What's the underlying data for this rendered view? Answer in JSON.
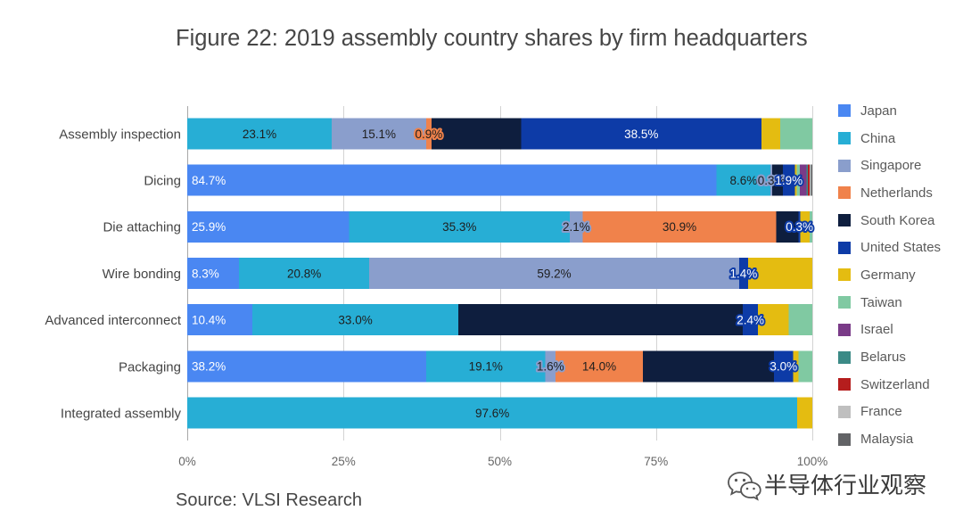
{
  "chart_data": {
    "type": "bar",
    "orientation": "horizontal",
    "stacked": true,
    "title": "Figure 22: 2019 assembly country shares by firm headquarters",
    "xlabel": "",
    "ylabel": "",
    "xlim": [
      0,
      100
    ],
    "x_ticks": [
      0,
      25,
      50,
      75,
      100
    ],
    "x_tick_labels": [
      "0%",
      "25%",
      "50%",
      "75%",
      "100%"
    ],
    "grid": true,
    "legend_position": "right",
    "categories": [
      "Assembly inspection",
      "Dicing",
      "Die attaching",
      "Wire bonding",
      "Advanced interconnect",
      "Packaging",
      "Integrated assembly"
    ],
    "series": [
      {
        "name": "Japan",
        "color": "#4a87f2",
        "label_color": "#ffffff",
        "values": [
          0,
          84.7,
          25.9,
          8.3,
          10.4,
          38.2,
          0
        ],
        "labels": [
          null,
          "84.7%",
          "25.9%",
          "8.3%",
          "10.4%",
          "38.2%",
          null
        ]
      },
      {
        "name": "China",
        "color": "#27aed5",
        "label_color": "#1e1e1e",
        "values": [
          23.1,
          8.6,
          35.3,
          20.8,
          33.0,
          19.1,
          97.6
        ],
        "labels": [
          "23.1%",
          "8.6%",
          "35.3%",
          "20.8%",
          "33.0%",
          "19.1%",
          "97.6%"
        ]
      },
      {
        "name": "Singapore",
        "color": "#8a9ecc",
        "label_color": "#1e1e1e",
        "values": [
          15.1,
          0.3,
          2.1,
          59.2,
          0,
          1.6,
          0
        ],
        "labels": [
          "15.1%",
          "0.3%",
          "2.1%",
          "59.2%",
          null,
          "1.6%",
          null
        ]
      },
      {
        "name": "Netherlands",
        "color": "#f0824b",
        "label_color": "#1e1e1e",
        "values": [
          0.9,
          0,
          30.9,
          0,
          0,
          14.0,
          0
        ],
        "labels": [
          "0.9%",
          null,
          "30.9%",
          null,
          null,
          "14.0%",
          null
        ]
      },
      {
        "name": "South Korea",
        "color": "#0e1e3e",
        "values": [
          14.3,
          1.7,
          3.6,
          0,
          45.5,
          21.0,
          0
        ]
      },
      {
        "name": "United States",
        "color": "#0d3ba7",
        "label_color": "#ffffff",
        "values": [
          38.5,
          1.9,
          0.3,
          1.4,
          2.4,
          3.0,
          0
        ],
        "labels": [
          "38.5%",
          "1.9%",
          "0.3%",
          "1.4%",
          "2.4%",
          "3.0%",
          null
        ]
      },
      {
        "name": "Germany",
        "color": "#e4bc11",
        "values": [
          3.0,
          0.3,
          1.5,
          10.3,
          4.9,
          0.9,
          2.4
        ]
      },
      {
        "name": "Taiwan",
        "color": "#80c9a2",
        "values": [
          5.1,
          0.5,
          0.4,
          0,
          3.8,
          2.2,
          0
        ]
      },
      {
        "name": "Israel",
        "color": "#7a3b88",
        "values": [
          0,
          1.1,
          0,
          0,
          0,
          0,
          0
        ]
      },
      {
        "name": "Belarus",
        "color": "#3b8a86",
        "values": [
          0,
          0.2,
          0,
          0,
          0,
          0,
          0
        ]
      },
      {
        "name": "Switzerland",
        "color": "#b51d1d",
        "values": [
          0,
          0.3,
          0,
          0,
          0,
          0,
          0
        ]
      },
      {
        "name": "France",
        "color": "#bfbfbf",
        "values": [
          0,
          0.2,
          0,
          0,
          0,
          0,
          0
        ]
      },
      {
        "name": "Malaysia",
        "color": "#626366",
        "values": [
          0,
          0.2,
          0,
          0,
          0,
          0,
          0
        ]
      }
    ]
  },
  "source": "Source: VLSI Research",
  "watermark": {
    "icon": "wechat-icon",
    "text": "半导体行业观察"
  }
}
